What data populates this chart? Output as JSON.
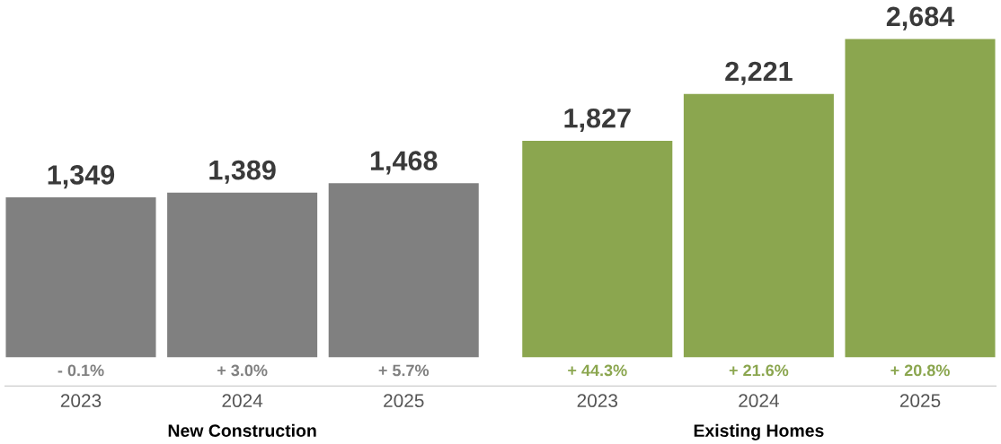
{
  "chart_data": {
    "type": "bar",
    "categories": [
      "2023",
      "2024",
      "2025",
      "2023",
      "2024",
      "2025"
    ],
    "values": [
      1349,
      1389,
      1468,
      1827,
      2221,
      2684
    ],
    "colors": [
      "#808080",
      "#808080",
      "#808080",
      "#8ba64f",
      "#8ba64f",
      "#8ba64f"
    ],
    "data_labels": true,
    "value_labels": [
      "1,349",
      "1,389",
      "1,468",
      "1,827",
      "2,221",
      "2,684"
    ],
    "annotations": [
      "- 0.1%",
      "+ 3.0%",
      "+ 5.7%",
      "+ 44.3%",
      "+ 21.6%",
      "+ 20.8%",
      "New Construction",
      "Existing Homes"
    ],
    "grid": false,
    "legend": false
  }
}
